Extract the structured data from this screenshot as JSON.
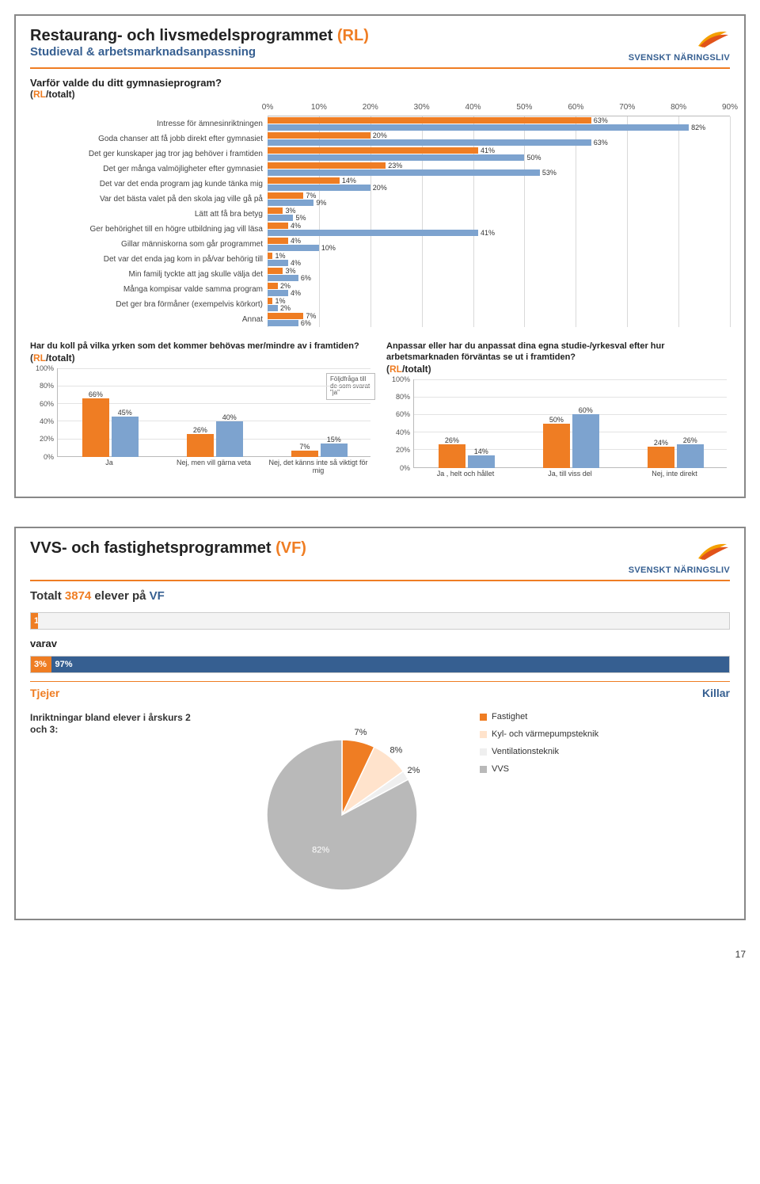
{
  "colors": {
    "orange": "#ef7d23",
    "blue": "#365f91",
    "lightblue": "#7da3cf",
    "grey": "#b9b9b9",
    "grid": "#d9d9d9",
    "text": "#333333"
  },
  "logo_text": "SVENSKT NÄRINGSLIV",
  "page_number": "17",
  "panel1": {
    "title_prefix": "Restaurang- och livsmedelsprogrammet ",
    "title_code": "(RL)",
    "subtitle": "Studieval & arbetsmarknadsanpassning",
    "hbar": {
      "question": "Varför valde du ditt gymnasieprogram?",
      "qsub_code": "RL",
      "qsub_rest": "/totalt",
      "xticks": [
        "0%",
        "10%",
        "20%",
        "30%",
        "40%",
        "50%",
        "60%",
        "70%",
        "80%",
        "90%"
      ],
      "xmax": 90,
      "series_colors": [
        "#ef7d23",
        "#7da3cf"
      ],
      "rows": [
        {
          "label": "Intresse för ämnesinriktningen",
          "a": 63,
          "b": 82
        },
        {
          "label": "Goda chanser att få jobb direkt efter gymnasiet",
          "a": 20,
          "b": 63
        },
        {
          "label": "Det ger kunskaper jag tror jag behöver i framtiden",
          "a": 41,
          "b": 50
        },
        {
          "label": "Det ger många valmöjligheter efter gymnasiet",
          "a": 23,
          "b": 53
        },
        {
          "label": "Det var det enda program jag kunde tänka mig",
          "a": 14,
          "b": 20
        },
        {
          "label": "Var det bästa valet på den skola jag ville gå på",
          "a": 7,
          "b": 9
        },
        {
          "label": "Lätt att få bra betyg",
          "a": 3,
          "b": 5
        },
        {
          "label": "Ger behörighet till en högre utbildning jag vill läsa",
          "a": 4,
          "b": 41
        },
        {
          "label": "Gillar människorna som går programmet",
          "a": 4,
          "b": 10
        },
        {
          "label": "Det var det enda jag kom in på/var behörig till",
          "a": 1,
          "b": 4
        },
        {
          "label": "Min familj tyckte att jag skulle välja det",
          "a": 3,
          "b": 6
        },
        {
          "label": "Många kompisar valde samma program",
          "a": 2,
          "b": 4
        },
        {
          "label": "Det ger bra förmåner (exempelvis körkort)",
          "a": 1,
          "b": 2
        },
        {
          "label": "Annat",
          "a": 7,
          "b": 6
        }
      ]
    },
    "left_chart": {
      "question": "Har du koll på vilka yrken som det kommer behövas mer/mindre av i framtiden?",
      "qsub_code": "RL",
      "qsub_rest": "/totalt",
      "ymax": 100,
      "ystep": 20,
      "colors": [
        "#ef7d23",
        "#7da3cf"
      ],
      "groups": [
        {
          "label": "Ja",
          "a": 66,
          "b": 45
        },
        {
          "label": "Nej, men vill gärna veta",
          "a": 26,
          "b": 40
        },
        {
          "label": "Nej, det känns inte så viktigt för mig",
          "a": 7,
          "b": 15
        }
      ],
      "followup": "Följdfråga till de som svarat \"ja\""
    },
    "right_chart": {
      "question": "Anpassar eller har du anpassat dina egna studie-/yrkesval efter hur arbetsmarknaden förväntas se ut i framtiden?",
      "qsub_code": "RL",
      "qsub_rest": "/totalt",
      "ymax": 100,
      "ystep": 20,
      "colors": [
        "#ef7d23",
        "#7da3cf"
      ],
      "groups": [
        {
          "label": "Ja , helt och hållet",
          "a": 26,
          "b": 14
        },
        {
          "label": "Ja, till viss del",
          "a": 50,
          "b": 60
        },
        {
          "label": "Nej, inte direkt",
          "a": 24,
          "b": 26
        }
      ]
    }
  },
  "panel2": {
    "title_prefix": "VVS- och fastighetsprogrammet ",
    "title_code": "(VF)",
    "total_prefix": "Totalt ",
    "total_n": "3874",
    "total_mid": " elever på ",
    "total_code": "VF",
    "bar1": {
      "segments": [
        {
          "pct": 1,
          "color": "#ef7d23",
          "label": "1%"
        },
        {
          "pct": 99,
          "color": "#f3f3f3",
          "label": ""
        }
      ]
    },
    "varav": "varav",
    "bar2": {
      "segments": [
        {
          "pct": 3,
          "color": "#ef7d23",
          "label": "3%"
        },
        {
          "pct": 97,
          "color": "#365f91",
          "label": "97%"
        }
      ]
    },
    "tjejer": "Tjejer",
    "killar": "Killar",
    "pie": {
      "title": "Inriktningar bland elever i årskurs 2 och 3:",
      "slices": [
        {
          "label": "Fastighet",
          "value": 7,
          "color": "#ef7d23"
        },
        {
          "label": "Kyl- och värmepumpsteknik",
          "value": 8,
          "color": "#ffe3cc"
        },
        {
          "label": "Ventilationsteknik",
          "value": 2,
          "color": "#efefef"
        },
        {
          "label": "VVS",
          "value": 82,
          "color": "#b9b9b9"
        }
      ]
    }
  }
}
